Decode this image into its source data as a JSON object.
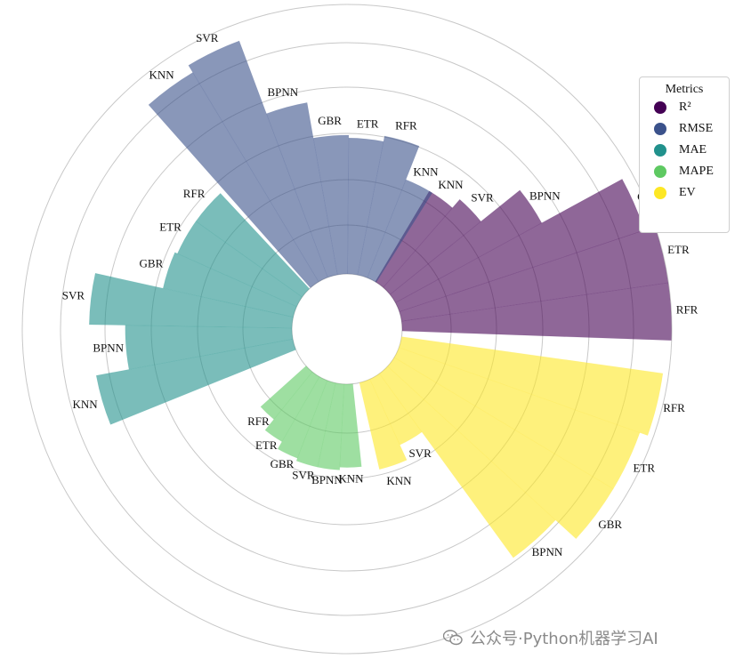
{
  "chart_data": {
    "type": "polar-bar",
    "metrics": [
      {
        "name": "R²",
        "color": "#440154",
        "models": [
          "RFR",
          "ETR",
          "GBR",
          "BPNN",
          "SVR",
          "KNN"
        ],
        "values": [
          0.97,
          0.97,
          0.93,
          0.6,
          0.42,
          0.38
        ]
      },
      {
        "name": "RMSE",
        "color": "#3b528b",
        "models": [
          "KNN",
          "RFR",
          "ETR",
          "GBR",
          "BPNN",
          "SVR",
          "KNN"
        ],
        "values": [
          0.38,
          0.51,
          0.49,
          0.5,
          0.63,
          0.91,
          0.88
        ]
      },
      {
        "name": "MAE",
        "color": "#21918c",
        "models": [
          "RFR",
          "ETR",
          "GBR",
          "SVR",
          "BPNN",
          "KNN"
        ],
        "values": [
          0.47,
          0.47,
          0.48,
          0.73,
          0.6,
          0.72
        ]
      },
      {
        "name": "MAPE",
        "color": "#5ec962",
        "models": [
          "RFR",
          "ETR",
          "GBR",
          "SVR",
          "BPNN",
          "KNN"
        ],
        "values": [
          0.22,
          0.27,
          0.3,
          0.31,
          0.31,
          0.3
        ]
      },
      {
        "name": "EV",
        "color": "#fde725",
        "models": [
          "KNN",
          "SVR",
          "BPNN",
          "GBR",
          "ETR",
          "RFR"
        ],
        "values": [
          0.32,
          0.26,
          0.82,
          0.92,
          0.92,
          0.95
        ]
      }
    ],
    "label_positions": "per-bar",
    "gridlines": "concentric circles",
    "legend": {
      "title": "Metrics",
      "placement": "right"
    }
  },
  "legend": {
    "title": "Metrics",
    "items": [
      {
        "label": "R²",
        "color": "#440154"
      },
      {
        "label": "RMSE",
        "color": "#3b528b"
      },
      {
        "label": "MAE",
        "color": "#21918c"
      },
      {
        "label": "MAPE",
        "color": "#5ec962"
      },
      {
        "label": "EV",
        "color": "#fde725"
      }
    ]
  },
  "watermark": {
    "text": "公众号·Python机器学习AI"
  }
}
